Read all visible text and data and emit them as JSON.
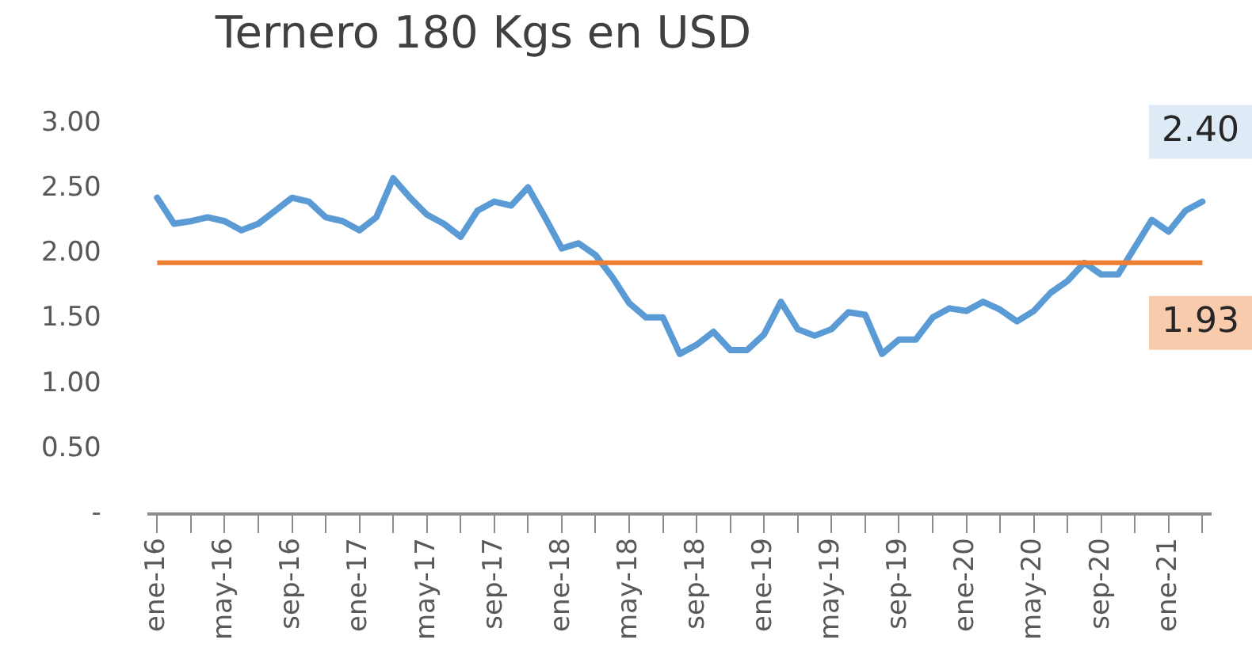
{
  "chart_data": {
    "type": "line",
    "title": "Ternero 180 Kgs en USD",
    "categories": [
      "ene-16",
      null,
      null,
      null,
      "may-16",
      null,
      null,
      null,
      "sep-16",
      null,
      null,
      null,
      "ene-17",
      null,
      null,
      null,
      "may-17",
      null,
      null,
      null,
      "sep-17",
      null,
      null,
      null,
      "ene-18",
      null,
      null,
      null,
      "may-18",
      null,
      null,
      null,
      "sep-18",
      null,
      null,
      null,
      "ene-19",
      null,
      null,
      null,
      "may-19",
      null,
      null,
      null,
      "sep-19",
      null,
      null,
      null,
      "ene-20",
      null,
      null,
      null,
      "may-20",
      null,
      null,
      null,
      "sep-20",
      null,
      null,
      null,
      "ene-21",
      null,
      null
    ],
    "series": [
      {
        "color": "#5b9bd5",
        "values": [
          2.43,
          2.23,
          2.25,
          2.28,
          2.25,
          2.18,
          2.23,
          2.33,
          2.43,
          2.4,
          2.28,
          2.25,
          2.18,
          2.28,
          2.58,
          2.43,
          2.3,
          2.23,
          2.13,
          2.33,
          2.4,
          2.37,
          2.51,
          2.28,
          2.04,
          2.08,
          1.99,
          1.82,
          1.62,
          1.51,
          1.51,
          1.23,
          1.3,
          1.4,
          1.26,
          1.26,
          1.38,
          1.63,
          1.42,
          1.37,
          1.42,
          1.55,
          1.53,
          1.23,
          1.34,
          1.34,
          1.51,
          1.58,
          1.56,
          1.63,
          1.57,
          1.48,
          1.56,
          1.7,
          1.79,
          1.93,
          1.84,
          1.84,
          2.05,
          2.26,
          2.17,
          2.33,
          2.4
        ],
        "value_labels": [
          null,
          null,
          null,
          null,
          null,
          null,
          null,
          null,
          null,
          null,
          null,
          null,
          null,
          null,
          null,
          null,
          null,
          null,
          null,
          null,
          null,
          null,
          null,
          null,
          null,
          null,
          null,
          null,
          null,
          null,
          null,
          null,
          null,
          null,
          null,
          null,
          null,
          null,
          null,
          null,
          null,
          null,
          null,
          null,
          null,
          null,
          null,
          null,
          null,
          null,
          null,
          null,
          null,
          null,
          null,
          null,
          null,
          null,
          null,
          null,
          null,
          null,
          "2.40"
        ]
      }
    ],
    "ylim": [
      0,
      3
    ],
    "yticks": [
      {
        "value": 0,
        "label": "-"
      },
      {
        "value": 0.5,
        "label": "0.50"
      },
      {
        "value": 1,
        "label": "1.00"
      },
      {
        "value": 1.5,
        "label": "1.50"
      },
      {
        "value": 2,
        "label": "2.00"
      },
      {
        "value": 2.5,
        "label": "2.50"
      },
      {
        "value": 3,
        "label": "3.00"
      }
    ],
    "ref_lines": [
      {
        "axis": "y",
        "value": 1.93,
        "label": "1.93",
        "color": "#ed7d31"
      }
    ],
    "grid": false,
    "legend": false,
    "marker": "none",
    "line_style": "solid"
  }
}
